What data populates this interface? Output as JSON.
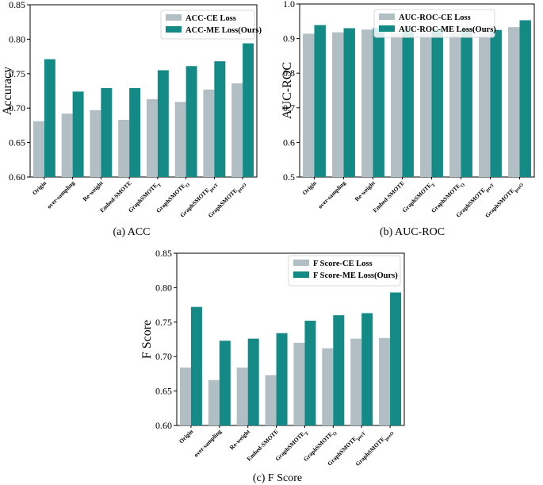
{
  "colors": {
    "ce": "#b1bec4",
    "me": "#138a86"
  },
  "categories": [
    "Origin",
    "over-sampling",
    "Re-weight",
    "Embed-SMOTE",
    "GraphSMOTE_T",
    "GraphSMOTE_O",
    "GraphSMOTE_preT",
    "GraphSMOTE_preO"
  ],
  "category_labels": [
    {
      "main": "Origin",
      "sub": ""
    },
    {
      "main": "over-sampling",
      "sub": ""
    },
    {
      "main": "Re-weight",
      "sub": ""
    },
    {
      "main": "Embed-SMOTE",
      "sub": ""
    },
    {
      "main": "GraphSMOTE",
      "sub": "T"
    },
    {
      "main": "GraphSMOTE",
      "sub": "O"
    },
    {
      "main": "GraphSMOTE",
      "sub": "preT"
    },
    {
      "main": "GraphSMOTE",
      "sub": "preO"
    }
  ],
  "chart_data": [
    {
      "type": "bar",
      "caption": "(a) ACC",
      "ylabel": "Accuracy",
      "ylim": [
        0.6,
        0.85
      ],
      "yticks": [
        "0.60",
        "0.65",
        "0.70",
        "0.75",
        "0.80",
        "0.85"
      ],
      "legend": "top-right",
      "series": [
        {
          "name": "ACC-CE Loss",
          "values": [
            0.681,
            0.692,
            0.697,
            0.683,
            0.713,
            0.709,
            0.727,
            0.736
          ]
        },
        {
          "name": "ACC-ME Loss(Ours)",
          "values": [
            0.771,
            0.724,
            0.729,
            0.729,
            0.755,
            0.761,
            0.768,
            0.794
          ]
        }
      ]
    },
    {
      "type": "bar",
      "caption": "(b) AUC-ROC",
      "ylabel": "AUC-ROC",
      "ylim": [
        0.5,
        1.0
      ],
      "yticks": [
        "0.5",
        "0.6",
        "0.7",
        "0.8",
        "0.9",
        "1.0"
      ],
      "legend": "top-right",
      "series": [
        {
          "name": "AUC-ROC-CE Loss",
          "values": [
            0.914,
            0.918,
            0.926,
            0.915,
            0.92,
            0.921,
            0.925,
            0.933
          ]
        },
        {
          "name": "AUC-ROC-ME Loss(Ours)",
          "values": [
            0.939,
            0.93,
            0.931,
            0.932,
            0.928,
            0.929,
            0.925,
            0.953
          ]
        }
      ]
    },
    {
      "type": "bar",
      "caption": "(c) F Score",
      "ylabel": "F Score",
      "ylim": [
        0.6,
        0.85
      ],
      "yticks": [
        "0.60",
        "0.65",
        "0.70",
        "0.75",
        "0.80",
        "0.85"
      ],
      "legend": "top-right",
      "series": [
        {
          "name": "F Score-CE Loss",
          "values": [
            0.684,
            0.666,
            0.684,
            0.673,
            0.72,
            0.712,
            0.726,
            0.727
          ]
        },
        {
          "name": "F Score-ME Loss(Ours)",
          "values": [
            0.772,
            0.723,
            0.726,
            0.734,
            0.752,
            0.76,
            0.763,
            0.793
          ]
        }
      ]
    }
  ]
}
